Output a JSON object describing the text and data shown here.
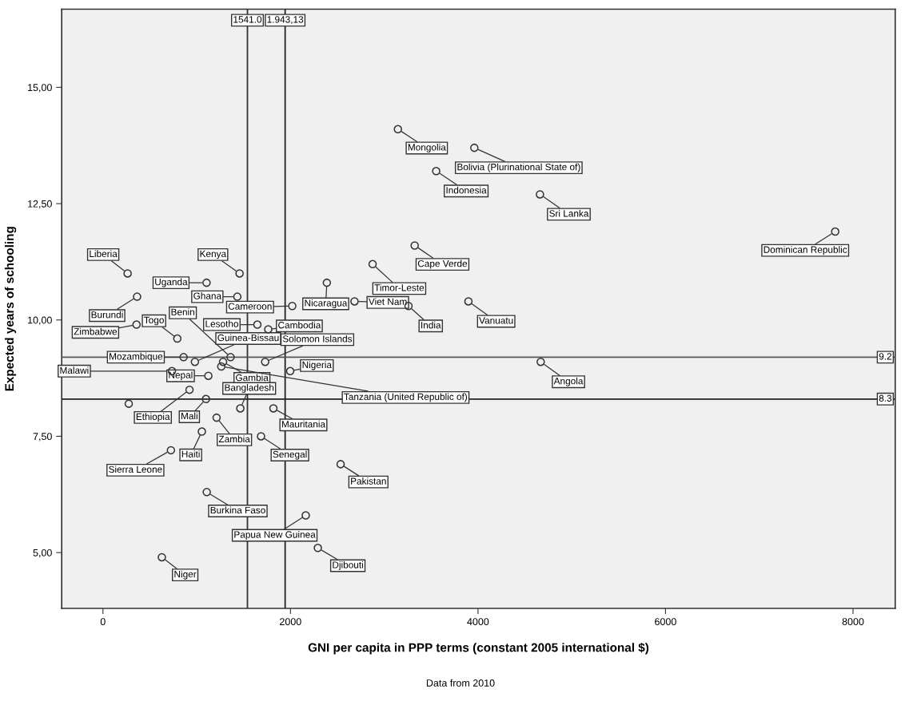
{
  "chart_data": {
    "type": "scatter",
    "xlabel": "GNI per capita in PPP terms (constant 2005 international $)",
    "ylabel": "Expected years of schooling",
    "x": [
      263,
      1457,
      1105,
      1433,
      364,
      358,
      793,
      1361,
      1647,
      1763,
      2019,
      981,
      1730,
      860,
      736,
      1124,
      1281,
      1262,
      1997,
      1465,
      923,
      1099,
      1818,
      1212,
      1686,
      1055,
      725,
      1107,
      2163,
      2292,
      628,
      2535,
      3146,
      3961,
      3554,
      4661,
      7810,
      3325,
      2876,
      2388,
      2683,
      3259,
      3898,
      4669,
      275
    ],
    "series": [
      {
        "color": "#333333",
        "values": [
          11.0,
          11.0,
          10.8,
          10.5,
          10.5,
          9.9,
          9.6,
          9.2,
          9.9,
          9.8,
          10.3,
          9.1,
          9.1,
          9.2,
          8.9,
          8.8,
          9.1,
          9.0,
          8.9,
          8.1,
          8.5,
          8.3,
          8.1,
          7.9,
          7.5,
          7.6,
          7.2,
          6.3,
          5.8,
          5.1,
          4.9,
          6.9,
          14.1,
          13.7,
          13.2,
          12.7,
          11.9,
          11.6,
          11.2,
          10.8,
          10.4,
          10.3,
          10.4,
          9.1,
          8.2
        ]
      }
    ],
    "marker": "circle",
    "grid": false,
    "xlim": [
      -440,
      8450
    ],
    "ylim": [
      3.8,
      16.68
    ],
    "xticks": [
      0,
      2000,
      4000,
      6000,
      8000
    ],
    "yticks": [
      {
        "value": 5,
        "label": "5,00"
      },
      {
        "value": 7.5,
        "label": "7,50"
      },
      {
        "value": 10,
        "label": "10,00"
      },
      {
        "value": 12.5,
        "label": "12,50"
      },
      {
        "value": 15,
        "label": "15,00"
      }
    ],
    "ref_lines": [
      {
        "axis": "x",
        "value": 1541.0,
        "label": "1541.0",
        "color": "#333333"
      },
      {
        "axis": "x",
        "value": 1943.13,
        "label": "1.943,13",
        "color": "#222222"
      },
      {
        "axis": "y",
        "value": 9.2,
        "label": "9.2",
        "color": "#555555"
      },
      {
        "axis": "y",
        "value": 8.3,
        "label": "8.3",
        "color": "#222222"
      }
    ],
    "annotations": [
      {
        "text": "Liberia",
        "x": 263,
        "y": 11.0
      },
      {
        "text": "Kenya",
        "x": 1457,
        "y": 11.0
      },
      {
        "text": "Uganda",
        "x": 1105,
        "y": 10.8
      },
      {
        "text": "Ghana",
        "x": 1433,
        "y": 10.5
      },
      {
        "text": "Burundi",
        "x": 364,
        "y": 10.5
      },
      {
        "text": "Zimbabwe",
        "x": 358,
        "y": 9.9
      },
      {
        "text": "Togo",
        "x": 793,
        "y": 9.6
      },
      {
        "text": "Benin",
        "x": 1361,
        "y": 9.2
      },
      {
        "text": "Lesotho",
        "x": 1647,
        "y": 9.9
      },
      {
        "text": "Cambodia",
        "x": 1763,
        "y": 9.8
      },
      {
        "text": "Cameroon",
        "x": 2019,
        "y": 10.3
      },
      {
        "text": "Guinea-Bissau",
        "x": 981,
        "y": 9.1
      },
      {
        "text": "Solomon Islands",
        "x": 1730,
        "y": 9.1
      },
      {
        "text": "Mozambique",
        "x": 860,
        "y": 9.2
      },
      {
        "text": "Malawi",
        "x": 736,
        "y": 8.9
      },
      {
        "text": "Nepal",
        "x": 1124,
        "y": 8.8
      },
      {
        "text": "Gambia",
        "x": 1281,
        "y": 9.1
      },
      {
        "text": "Tanzania (United Republic of)",
        "x": 1262,
        "y": 9.0
      },
      {
        "text": "Nigeria",
        "x": 1997,
        "y": 8.9
      },
      {
        "text": "Bangladesh",
        "x": 1465,
        "y": 8.1
      },
      {
        "text": "Ethiopia",
        "x": 923,
        "y": 8.5
      },
      {
        "text": "Mali",
        "x": 1099,
        "y": 8.3
      },
      {
        "text": "Mauritania",
        "x": 1818,
        "y": 8.1
      },
      {
        "text": "Zambia",
        "x": 1212,
        "y": 7.9
      },
      {
        "text": "Senegal",
        "x": 1686,
        "y": 7.5
      },
      {
        "text": "Haiti",
        "x": 1055,
        "y": 7.6
      },
      {
        "text": "Sierra Leone",
        "x": 725,
        "y": 7.2
      },
      {
        "text": "Burkina Faso",
        "x": 1107,
        "y": 6.3
      },
      {
        "text": "Papua New Guinea",
        "x": 2163,
        "y": 5.8
      },
      {
        "text": "Djibouti",
        "x": 2292,
        "y": 5.1
      },
      {
        "text": "Niger",
        "x": 628,
        "y": 4.9
      },
      {
        "text": "Pakistan",
        "x": 2535,
        "y": 6.9
      },
      {
        "text": "Mongolia",
        "x": 3146,
        "y": 14.1
      },
      {
        "text": "Bolivia (Plurinational State of)",
        "x": 3961,
        "y": 13.7
      },
      {
        "text": "Indonesia",
        "x": 3554,
        "y": 13.2
      },
      {
        "text": "Sri Lanka",
        "x": 4661,
        "y": 12.7
      },
      {
        "text": "Dominican Republic",
        "x": 7810,
        "y": 11.9
      },
      {
        "text": "Cape Verde",
        "x": 3325,
        "y": 11.6
      },
      {
        "text": "Timor-Leste",
        "x": 2876,
        "y": 11.2
      },
      {
        "text": "Nicaragua",
        "x": 2388,
        "y": 10.8
      },
      {
        "text": "Viet Nam",
        "x": 2683,
        "y": 10.4
      },
      {
        "text": "India",
        "x": 3259,
        "y": 10.3
      },
      {
        "text": "Vanuatu",
        "x": 3898,
        "y": 10.4
      },
      {
        "text": "Angola",
        "x": 4669,
        "y": 9.1
      },
      "Data from 2010"
    ]
  }
}
